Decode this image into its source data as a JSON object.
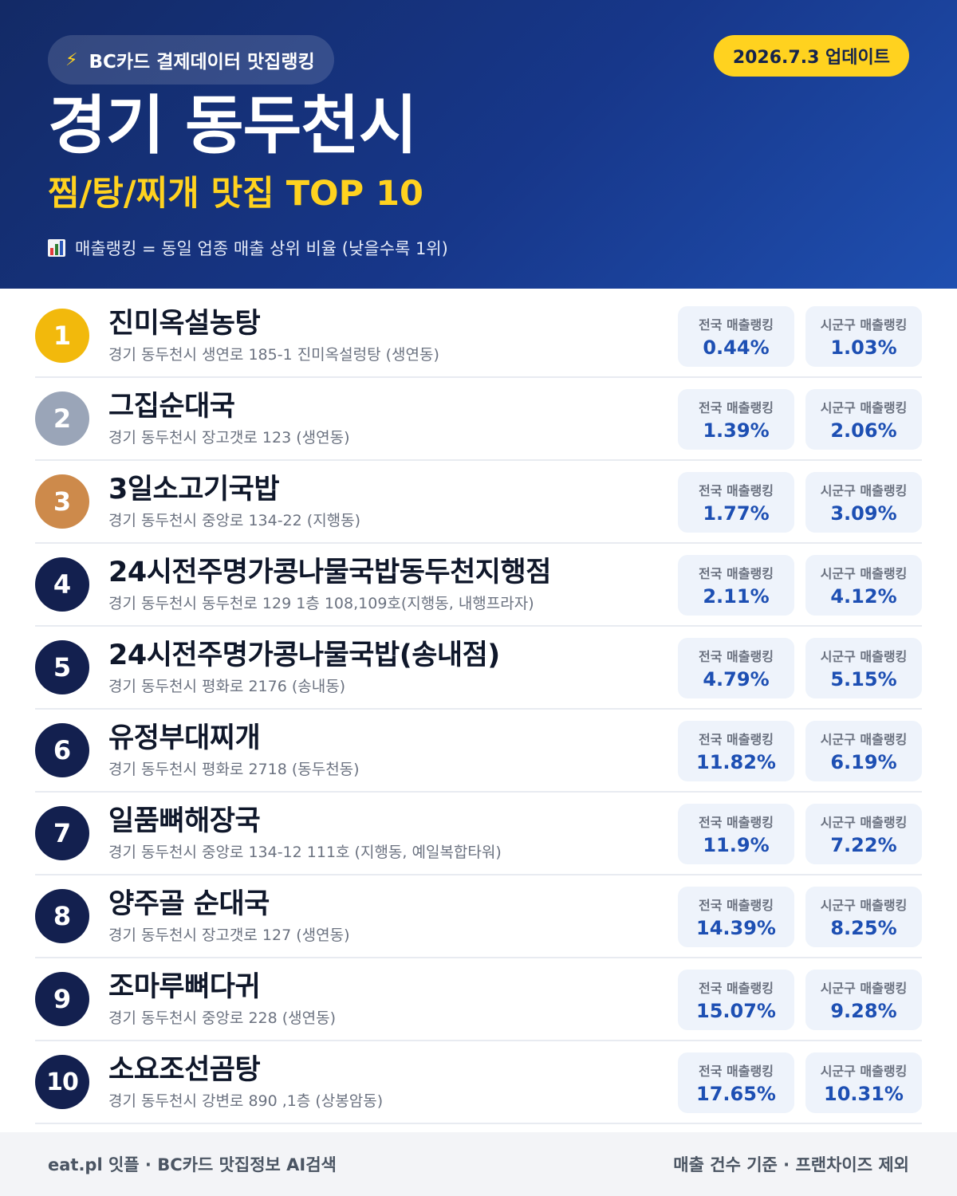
{
  "header": {
    "source_badge": "BC카드 결제데이터 맛집랭킹",
    "update_badge": "2026.7.3 업데이트",
    "title": "경기 동두천시",
    "subtitle": "찜/탕/찌개 맛집 TOP 10",
    "note": "매출랭킹 = 동일 업종 매출 상위 비율 (낮을수록 1위)"
  },
  "labels": {
    "national": "전국 매출랭킹",
    "local": "시군구 매출랭킹"
  },
  "restaurants": [
    {
      "rank": "1",
      "name": "진미옥설농탕",
      "address": "경기 동두천시 생연로 185-1 진미옥설렁탕 (생연동)",
      "national": "0.44%",
      "local": "1.03%"
    },
    {
      "rank": "2",
      "name": "그집순대국",
      "address": "경기 동두천시 장고갯로 123 (생연동)",
      "national": "1.39%",
      "local": "2.06%"
    },
    {
      "rank": "3",
      "name": "3일소고기국밥",
      "address": "경기 동두천시 중앙로 134-22 (지행동)",
      "national": "1.77%",
      "local": "3.09%"
    },
    {
      "rank": "4",
      "name": "24시전주명가콩나물국밥동두천지행점",
      "address": "경기 동두천시 동두천로 129 1층 108,109호(지행동, 내행프라자)",
      "national": "2.11%",
      "local": "4.12%"
    },
    {
      "rank": "5",
      "name": "24시전주명가콩나물국밥(송내점)",
      "address": "경기 동두천시 평화로 2176 (송내동)",
      "national": "4.79%",
      "local": "5.15%"
    },
    {
      "rank": "6",
      "name": "유정부대찌개",
      "address": "경기 동두천시 평화로 2718 (동두천동)",
      "national": "11.82%",
      "local": "6.19%"
    },
    {
      "rank": "7",
      "name": "일품뼈해장국",
      "address": "경기 동두천시 중앙로 134-12 111호 (지행동, 예일복합타워)",
      "national": "11.9%",
      "local": "7.22%"
    },
    {
      "rank": "8",
      "name": "양주골 순대국",
      "address": "경기 동두천시 장고갯로 127 (생연동)",
      "national": "14.39%",
      "local": "8.25%"
    },
    {
      "rank": "9",
      "name": "조마루뼈다귀",
      "address": "경기 동두천시 중앙로 228 (생연동)",
      "national": "15.07%",
      "local": "9.28%"
    },
    {
      "rank": "10",
      "name": "소요조선곰탕",
      "address": "경기 동두천시 강변로 890 ,1층 (상봉암동)",
      "national": "17.65%",
      "local": "10.31%"
    }
  ],
  "footer": {
    "left": "eat.pl 잇플 · BC카드 맛집정보 AI검색",
    "right": "매출 건수 기준 · 프랜차이즈 제외"
  },
  "colors": {
    "header_gradient_start": "#132a66",
    "header_gradient_end": "#1f4fb0",
    "accent_yellow": "#ffd21f",
    "rank_gold": "#f2b90c",
    "rank_silver": "#9aa5b8",
    "rank_bronze": "#cd8a4b",
    "rank_default": "#13204f",
    "value_blue": "#1d4fb3"
  },
  "icons": {
    "source_badge": "lightning-bolt-icon",
    "note": "bar-chart-icon"
  }
}
